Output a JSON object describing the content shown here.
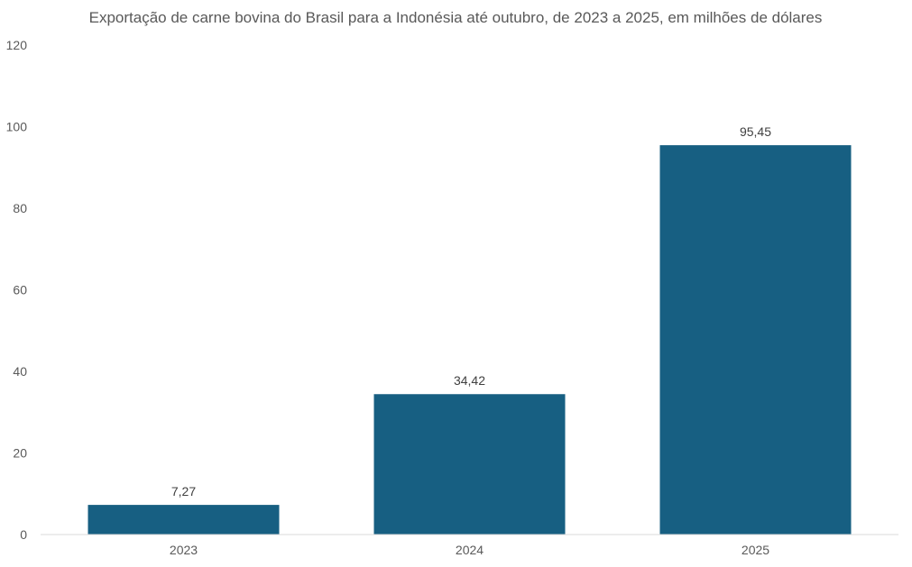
{
  "chart_data": {
    "type": "bar",
    "title": "Exportação de carne bovina do Brasil para a Indonésia até outubro, de 2023 a 2025, em milhões de dólares",
    "categories": [
      "2023",
      "2024",
      "2025"
    ],
    "values": [
      7.27,
      34.42,
      95.45
    ],
    "data_labels": [
      "7,27",
      "34,42",
      "95,45"
    ],
    "xlabel": "",
    "ylabel": "",
    "ylim": [
      0,
      120
    ],
    "yticks": [
      0,
      20,
      40,
      60,
      80,
      100,
      120
    ],
    "grid": false,
    "legend": "none",
    "colors": {
      "bar": "#175F82",
      "axis": "#D9D9D9",
      "text": "#595959"
    }
  }
}
